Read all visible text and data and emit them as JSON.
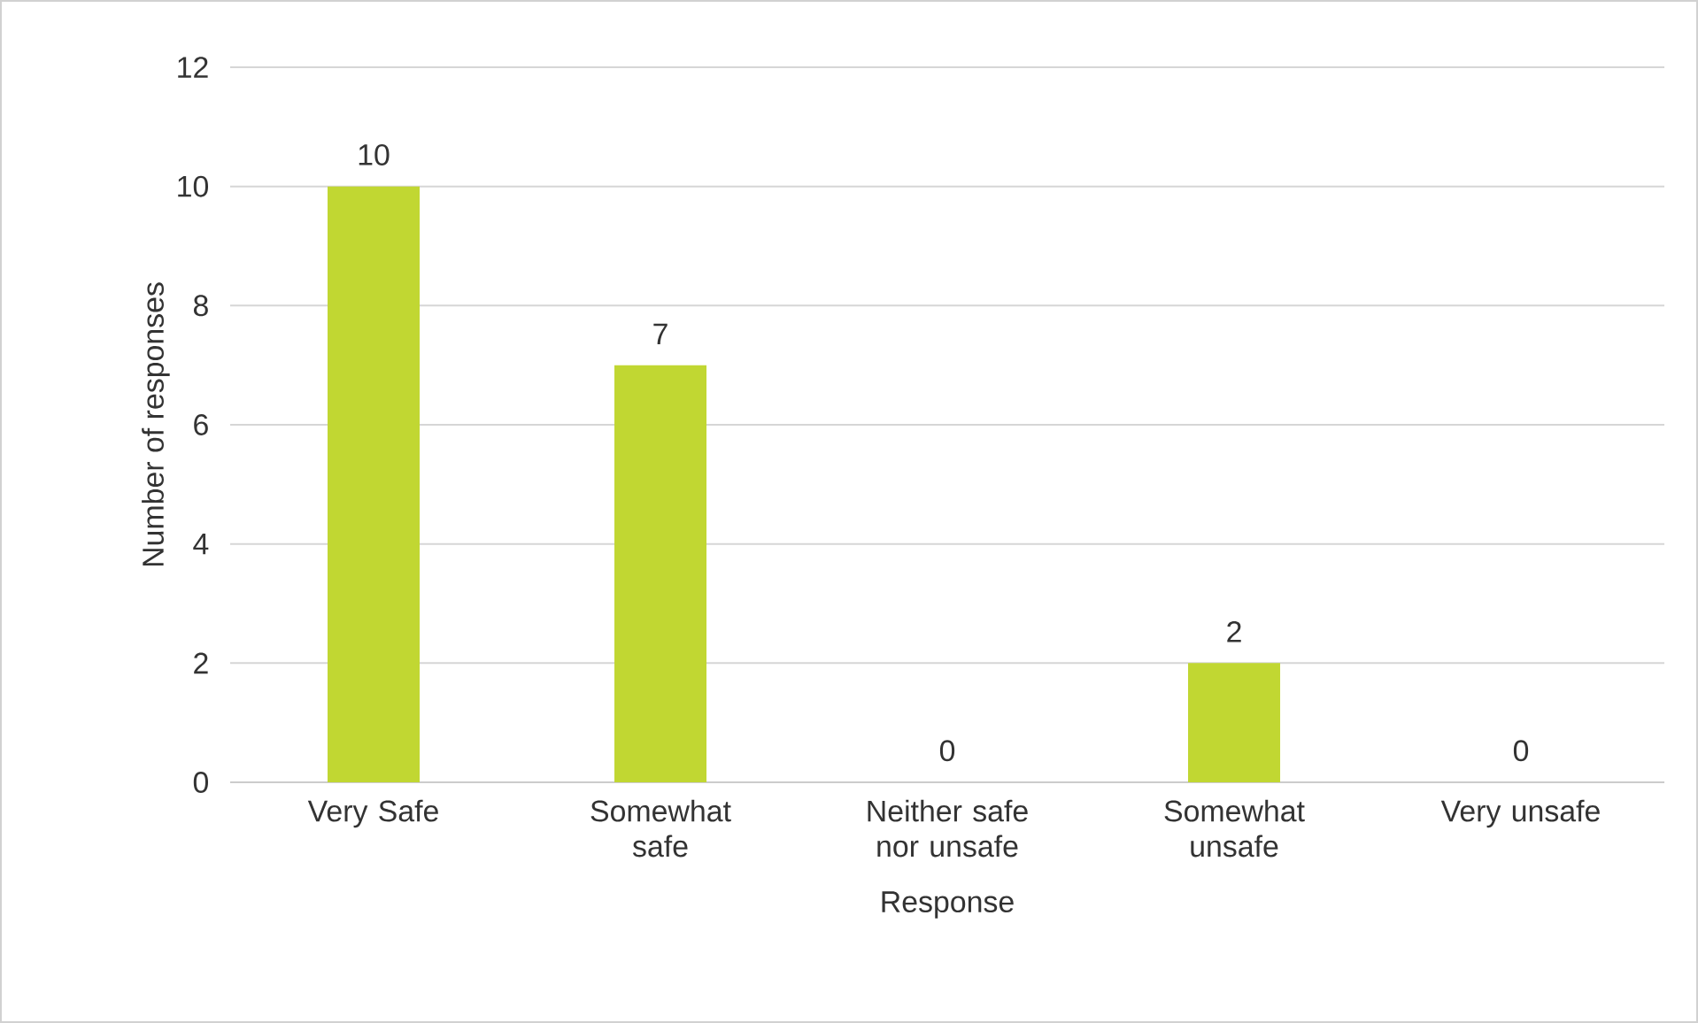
{
  "chart_data": {
    "type": "bar",
    "xlabel": "Response",
    "ylabel": "Number of responses",
    "categories": [
      "Very Safe",
      "Somewhat safe",
      "Neither safe nor unsafe",
      "Somewhat unsafe",
      "Very unsafe"
    ],
    "values": [
      10,
      7,
      0,
      2,
      0
    ],
    "color": "#c1d732",
    "ylim": [
      0,
      12
    ],
    "yticks": [
      0,
      2,
      4,
      6,
      8,
      10,
      12
    ],
    "grid": "y",
    "data_labels": true
  }
}
